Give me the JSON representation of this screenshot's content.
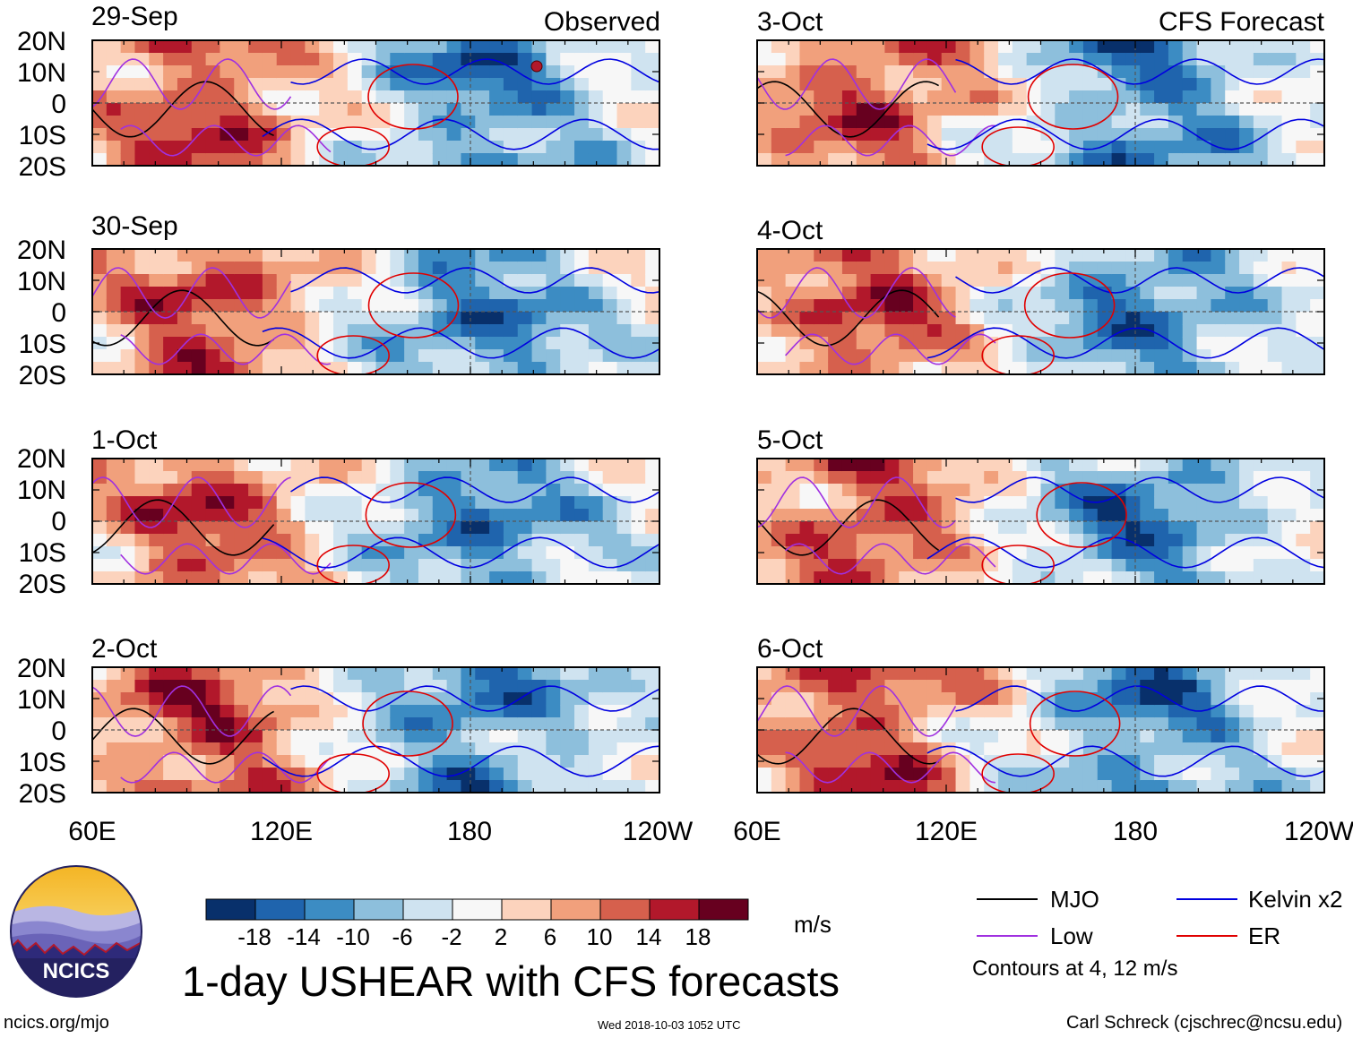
{
  "chart_data": {
    "type": "heatmap",
    "title": "1-day USHEAR with CFS forecasts",
    "variable": "USHEAR",
    "units": "m/s",
    "panel_groups": [
      {
        "label": "Observed",
        "panels": [
          "29-Sep",
          "30-Sep",
          "1-Oct",
          "2-Oct"
        ]
      },
      {
        "label": "CFS Forecast",
        "panels": [
          "3-Oct",
          "4-Oct",
          "5-Oct",
          "6-Oct"
        ]
      }
    ],
    "lat_labels": [
      "20N",
      "10N",
      "0",
      "10S",
      "20S"
    ],
    "lat_range": [
      -20,
      20
    ],
    "lon_labels": [
      "60E",
      "120E",
      "180",
      "120W"
    ],
    "lon_range": [
      60,
      240
    ],
    "colorbar": {
      "ticks": [
        "-18",
        "-14",
        "-10",
        "-6",
        "-2",
        "2",
        "6",
        "10",
        "14",
        "18"
      ],
      "colors": [
        "#08306b",
        "#1f64ad",
        "#3c8cc3",
        "#8dbfdc",
        "#cfe3f0",
        "#f7f7f7",
        "#fcd3bd",
        "#f1a07c",
        "#d6604d",
        "#b2182b",
        "#67001f"
      ]
    },
    "contours": {
      "note": "Contours at 4, 12 m/s",
      "series": [
        {
          "name": "MJO",
          "color": "#000000"
        },
        {
          "name": "Low",
          "color": "#a030e0"
        },
        {
          "name": "Kelvin x2",
          "color": "#0000e0"
        },
        {
          "name": "ER",
          "color": "#e00000"
        }
      ]
    }
  },
  "logo": {
    "text": "NCICS"
  },
  "footer": {
    "url": "ncics.org/mjo",
    "timestamp": "Wed 2018-10-03 1052 UTC",
    "credit": "Carl Schreck (cjschrec@ncsu.edu)"
  }
}
